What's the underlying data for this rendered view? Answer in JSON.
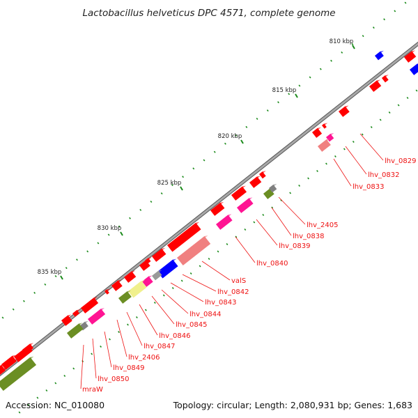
{
  "title": "Lactobacillus helveticus DPC 4571, complete genome",
  "footer": {
    "accession": "Accession: NC_010080",
    "topology": "Topology: circular; Length: 2,080,931 bp; Genes: 1,683"
  },
  "colors": {
    "backbone": "#888888",
    "forward_cds": "#ff0000",
    "label": "#ee1111",
    "leader": "#ee1111",
    "tick": "#1a8a1a",
    "pink": "#ff1493",
    "salmon": "#f08080",
    "olive": "#6b8e23",
    "grey": "#999999",
    "blue": "#0000ff",
    "yellow": "#f0f08c"
  },
  "kbp_marks": [
    "810 kbp",
    "815 kbp",
    "820 kbp",
    "825 kbp",
    "830 kbp",
    "835 kbp"
  ],
  "gene_labels": [
    "lhv_0829",
    "lhv_0832",
    "lhv_0833",
    "lhv_2405",
    "lhv_0838",
    "lhv_0839",
    "lhv_0840",
    "valS",
    "lhv_0842",
    "lhv_0843",
    "lhv_0844",
    "lhv_0845",
    "lhv_0846",
    "lhv_0847",
    "lhv_2406",
    "lhv_0849",
    "lhv_0850",
    "mraW"
  ]
}
